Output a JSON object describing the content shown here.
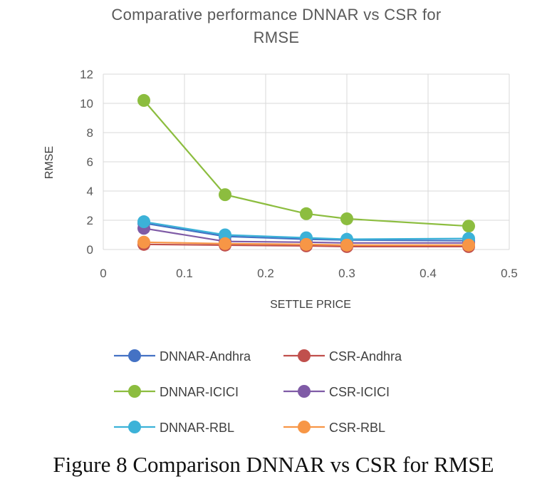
{
  "chart_data": {
    "type": "line",
    "title": "Comparative performance DNNAR vs CSR for RMSE",
    "title_lines": [
      "Comparative  performance  DNNAR vs CSR  for",
      "RMSE"
    ],
    "xlabel": "SETTLE PRICE",
    "ylabel": "RMSE",
    "xlim": [
      0,
      0.5
    ],
    "ylim": [
      0,
      12
    ],
    "xticks": [
      0,
      0.1,
      0.2,
      0.3,
      0.4,
      0.5
    ],
    "xtick_labels": [
      "0",
      "0.1",
      "0.2",
      "0.3",
      "0.4",
      "0.5"
    ],
    "yticks": [
      0,
      2,
      4,
      6,
      8,
      10,
      12
    ],
    "ytick_labels": [
      "0",
      "2",
      "4",
      "6",
      "8",
      "10",
      "12"
    ],
    "grid": true,
    "legend_position": "bottom",
    "x": [
      0.05,
      0.15,
      0.25,
      0.3,
      0.45
    ],
    "series": [
      {
        "name": "DNNAR-Andhra",
        "color": "#4472c4",
        "values": [
          1.8,
          0.9,
          0.7,
          0.65,
          0.6
        ]
      },
      {
        "name": "CSR-Andhra",
        "color": "#c0504d",
        "values": [
          0.35,
          0.3,
          0.25,
          0.2,
          0.2
        ]
      },
      {
        "name": "DNNAR-ICICI",
        "color": "#8cbd3f",
        "values": [
          10.2,
          3.75,
          2.45,
          2.1,
          1.6
        ]
      },
      {
        "name": "CSR-ICICI",
        "color": "#7f5ba6",
        "values": [
          1.45,
          0.55,
          0.5,
          0.45,
          0.45
        ]
      },
      {
        "name": "DNNAR-RBL",
        "color": "#3cb2d8",
        "values": [
          1.9,
          1.0,
          0.8,
          0.7,
          0.75
        ]
      },
      {
        "name": "CSR-RBL",
        "color": "#f79646",
        "values": [
          0.5,
          0.4,
          0.35,
          0.3,
          0.3
        ]
      }
    ]
  },
  "caption": "Figure 8 Comparison DNNAR vs CSR for RMSE"
}
